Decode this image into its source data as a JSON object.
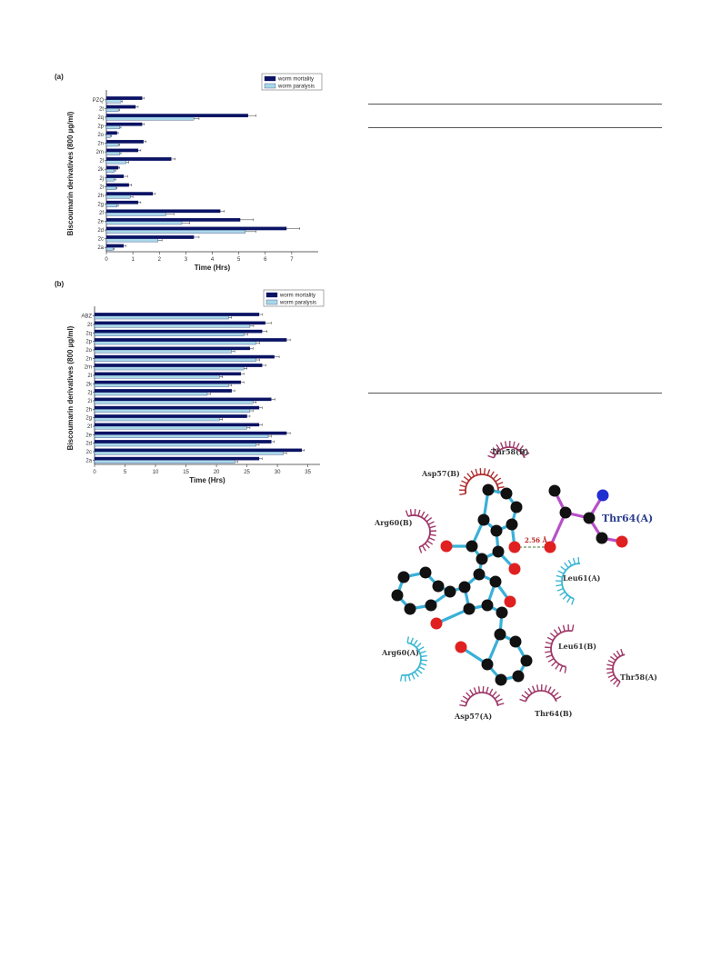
{
  "chart_data": [
    {
      "type": "bar",
      "panel_label": "(a)",
      "xlabel": "Time (Hrs)",
      "ylabel": "Biscoumarin derivatives  (800 µg/ml)",
      "xlim": [
        0,
        8
      ],
      "xticks": [
        "0",
        "1",
        "2",
        "3",
        "4",
        "5",
        "6",
        "7"
      ],
      "legend_placement": "top-right",
      "categories": [
        "PZQ",
        "2t",
        "2q",
        "2p",
        "2o",
        "2n",
        "2m",
        "2l",
        "2k",
        "2j",
        "2i",
        "2h",
        "2g",
        "2f",
        "2e",
        "2d",
        "2c",
        "2a"
      ],
      "series": [
        {
          "name": "worm mortality",
          "color": "#0b1364",
          "values": [
            1.35,
            1.1,
            5.35,
            1.35,
            0.4,
            1.4,
            1.2,
            2.45,
            0.45,
            0.65,
            0.85,
            1.75,
            1.2,
            4.3,
            5.05,
            6.8,
            3.3,
            0.65
          ],
          "errors": [
            0.08,
            0.1,
            0.3,
            0.08,
            0.05,
            0.1,
            0.1,
            0.15,
            0.05,
            0.15,
            0.1,
            0.1,
            0.1,
            0.15,
            0.5,
            0.5,
            0.2,
            0.08
          ]
        },
        {
          "name": "worm paralysis",
          "color": "#a9d8e8",
          "values": [
            0.55,
            0.45,
            3.3,
            0.5,
            0.15,
            0.45,
            0.5,
            0.75,
            0.3,
            0.3,
            0.35,
            0.9,
            0.4,
            2.25,
            2.85,
            5.25,
            1.95,
            0.25
          ],
          "errors": [
            0.05,
            0.05,
            0.2,
            0.05,
            0.05,
            0.05,
            0.05,
            0.1,
            0.05,
            0.05,
            0.05,
            0.1,
            0.05,
            0.3,
            0.3,
            0.4,
            0.15,
            0.05
          ]
        }
      ]
    },
    {
      "type": "bar",
      "panel_label": "(b)",
      "xlabel": "Time (Hrs)",
      "ylabel": "Biscoumarin derivatives (800 µg/ml)",
      "xlim": [
        0,
        37
      ],
      "xticks": [
        "0",
        "5",
        "10",
        "15",
        "20",
        "25",
        "30",
        "35"
      ],
      "legend_placement": "top-right",
      "categories": [
        "ABZ",
        "2t",
        "2q",
        "2p",
        "2o",
        "2n",
        "2m",
        "2l",
        "2k",
        "2j",
        "2i",
        "2h",
        "2g",
        "2f",
        "2e",
        "2d",
        "2c",
        "2a"
      ],
      "series": [
        {
          "name": "worm mortality",
          "color": "#0b1364",
          "values": [
            27,
            28,
            27.5,
            31.5,
            25.5,
            29.5,
            27.5,
            24,
            24,
            22.5,
            29,
            27,
            25,
            27,
            31.5,
            29,
            34,
            27
          ],
          "errors": [
            0.5,
            1,
            0.8,
            0.6,
            0.5,
            0.8,
            0.6,
            0.5,
            0.5,
            0.5,
            0.6,
            0.5,
            0.5,
            0.5,
            0.6,
            0.5,
            0.4,
            0.5
          ]
        },
        {
          "name": "worm paralysis",
          "color": "#a9d8e8",
          "values": [
            22,
            25.5,
            24.5,
            26.5,
            22.5,
            26.5,
            24.5,
            20.5,
            22,
            18.5,
            26,
            25.5,
            20.5,
            25,
            28.5,
            26.5,
            31,
            23
          ],
          "errors": [
            0.5,
            0.6,
            0.6,
            0.6,
            0.5,
            0.6,
            0.5,
            0.5,
            0.5,
            0.5,
            0.5,
            0.5,
            0.5,
            0.5,
            0.5,
            0.5,
            0.5,
            0.5
          ]
        }
      ]
    }
  ],
  "docking": {
    "residues": {
      "thr58b": "Thr58(B)",
      "asp57b": "Asp57(B)",
      "arg60b": "Arg60(B)",
      "thr64a": "Thr64(A)",
      "leu61a": "Leu61(A)",
      "arg60a": "Arg60(A)",
      "leu61b": "Leu61(B)",
      "thr58a": "Thr58(A)",
      "asp57a": "Asp57(A)",
      "thr64b": "Thr64(B)"
    },
    "hbond_distance": "2.56 Å",
    "colors": {
      "bond": "#3ab0d8",
      "thr_bond": "#b84fc9",
      "carbon": "#111111",
      "oxygen": "#e02020",
      "nitrogen": "#1f2fd0",
      "arc_red": "#b03030",
      "arc_purple": "#a03a6a",
      "arc_cyan": "#3ab8d4"
    }
  }
}
